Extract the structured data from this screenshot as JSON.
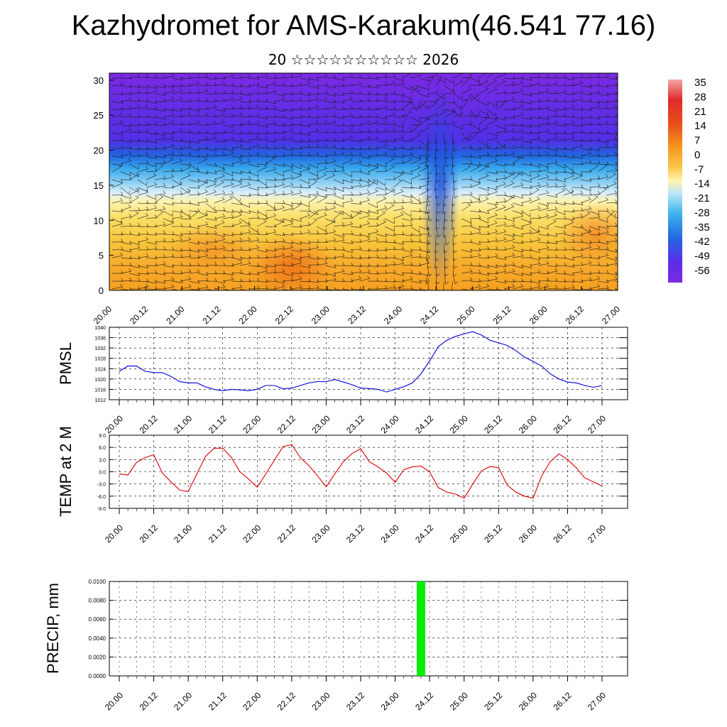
{
  "title": "Kazhydromet for AMS-Karakum(46.541 77.16)",
  "subtitle": "20 ☆☆☆☆☆☆☆☆☆☆ 2026",
  "x_tick_labels": [
    "20.00",
    "20.12",
    "21.00",
    "21.12",
    "22.00",
    "22.12",
    "23.00",
    "23.12",
    "24.00",
    "24.12",
    "25.00",
    "25.12",
    "26.00",
    "26.12",
    "27.00"
  ],
  "colors": {
    "pmsl_line": "#0000dd",
    "temp_line": "#dd0000",
    "precip_bar": "#00ee00"
  },
  "chart_data": [
    {
      "type": "heatmap",
      "name": "temperature-wind-cross-section",
      "ylim": [
        0,
        31
      ],
      "yticks": [
        0,
        5,
        10,
        15,
        20,
        25,
        30
      ],
      "colorbar_labels": [
        "35",
        "28",
        "21",
        "14",
        "7",
        "0",
        "-7",
        "-14",
        "-21",
        "-28",
        "-35",
        "-42",
        "-49",
        "-56"
      ],
      "colorbar_colors": [
        "#f3a6a6",
        "#e83a3a",
        "#dc1c1c",
        "#e8501c",
        "#f07818",
        "#f7a53c",
        "#fcd45c",
        "#fff4b4",
        "#a6dcf4",
        "#3cb4ec",
        "#2484e4",
        "#2a54e0",
        "#5a2ce8",
        "#7d2ae4"
      ],
      "wind_barbs": true
    },
    {
      "type": "line",
      "name": "pmsl",
      "ylabel": "PMSL",
      "ylim": [
        1012,
        1040
      ],
      "yticks": [
        1012,
        1016,
        1020,
        1024,
        1028,
        1032,
        1036,
        1040
      ],
      "x": [
        0,
        3,
        6,
        9,
        12,
        15,
        18,
        21,
        24,
        27,
        30,
        33,
        36,
        39,
        42,
        45,
        48,
        51,
        54,
        57,
        60,
        63,
        66,
        69,
        72,
        75,
        78,
        81,
        84,
        87,
        90,
        93,
        96,
        99,
        102,
        105,
        108,
        111,
        114,
        117,
        120,
        123,
        126,
        129,
        132,
        135,
        138,
        141,
        144,
        147,
        150,
        153,
        156,
        159,
        162,
        165,
        168
      ],
      "values": [
        1023,
        1025,
        1025,
        1023,
        1022.5,
        1022.5,
        1021,
        1019,
        1018.5,
        1018.5,
        1017,
        1016,
        1015.5,
        1016,
        1015.8,
        1015.5,
        1016,
        1017.5,
        1017.5,
        1016.2,
        1016.5,
        1017.5,
        1018.5,
        1019,
        1019,
        1019.8,
        1018.8,
        1017.8,
        1016.5,
        1016.3,
        1016,
        1015,
        1016,
        1017,
        1018.5,
        1022,
        1027,
        1032.5,
        1035,
        1036.5,
        1037.5,
        1038.3,
        1037,
        1035,
        1034,
        1033,
        1031,
        1028.5,
        1026.8,
        1025,
        1022,
        1020,
        1018.8,
        1018.5,
        1017.5,
        1016.8,
        1017.5
      ]
    },
    {
      "type": "line",
      "name": "temp-2m",
      "ylabel": "TEMP at 2 M",
      "ylim": [
        -9,
        9
      ],
      "yticks": [
        -9.0,
        -6.0,
        -3.0,
        0.0,
        3.0,
        6.0,
        9.0
      ],
      "ytick_labels": [
        "-9.0",
        "-6.0",
        "-3.0",
        "0.0",
        "3.0",
        "6.0",
        "9.0"
      ],
      "x": [
        0,
        3,
        6,
        9,
        12,
        15,
        18,
        21,
        24,
        27,
        30,
        33,
        36,
        39,
        42,
        45,
        48,
        51,
        54,
        57,
        60,
        63,
        66,
        69,
        72,
        75,
        78,
        81,
        84,
        87,
        90,
        93,
        96,
        99,
        102,
        105,
        108,
        111,
        114,
        117,
        120,
        123,
        126,
        129,
        132,
        135,
        138,
        141,
        144,
        147,
        150,
        153,
        156,
        159,
        162,
        165,
        168
      ],
      "values": [
        -0.5,
        -0.8,
        2.3,
        3.5,
        4.2,
        -0.3,
        -2.5,
        -4.5,
        -4.9,
        -0.5,
        3.8,
        5.8,
        5.8,
        3.5,
        0,
        -1.8,
        -3.8,
        -0.5,
        2.9,
        6.2,
        6.7,
        3.5,
        1.5,
        -1,
        -3.7,
        -0.5,
        2.5,
        4.5,
        5.7,
        2.5,
        1.2,
        -0.3,
        -2.6,
        0.5,
        1.2,
        1.4,
        0,
        -3.9,
        -5,
        -5.5,
        -6.5,
        -3,
        0.2,
        1.3,
        1,
        -3.3,
        -5,
        -6,
        -6.5,
        -1,
        2.5,
        4.4,
        3,
        1,
        -1.5,
        -2.5,
        -3.5
      ]
    },
    {
      "type": "bar",
      "name": "precip",
      "ylabel": "PRECIP, mm",
      "ylim": [
        0,
        0.01
      ],
      "yticks": [
        0,
        0.002,
        0.004,
        0.006,
        0.008,
        0.01
      ],
      "ytick_labels": [
        "0.0000",
        "0.0020",
        "0.0040",
        "0.0060",
        "0.0080",
        "0.0100"
      ],
      "bars": [
        {
          "x": 105,
          "value": 0.01
        }
      ]
    }
  ]
}
